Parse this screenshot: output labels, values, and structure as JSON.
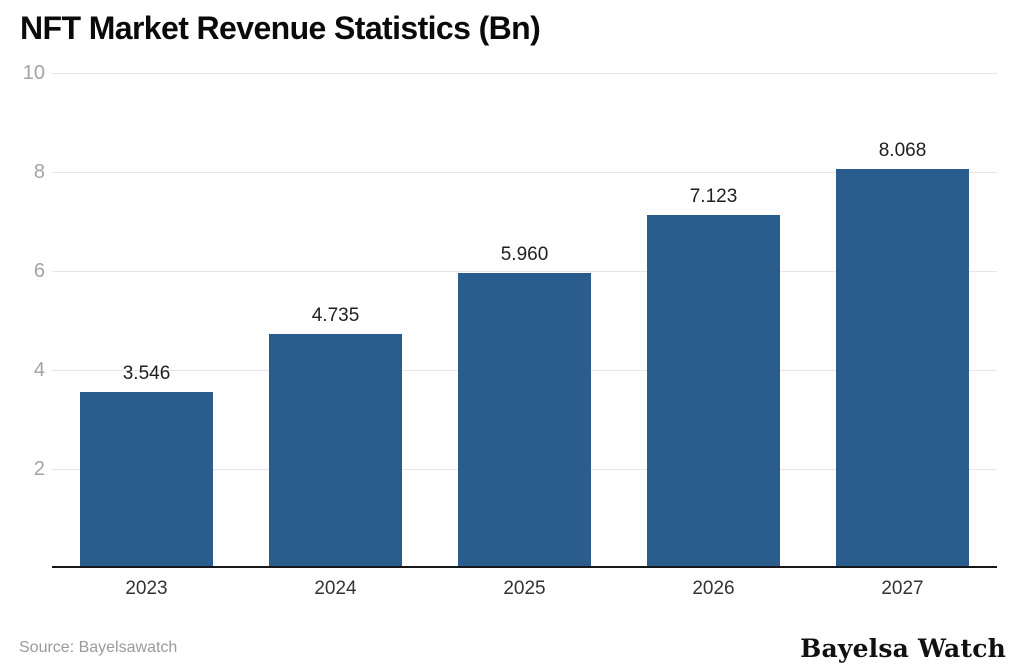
{
  "header": {
    "title": "NFT Market Revenue Statistics (Bn)"
  },
  "footer": {
    "source": "Source: Bayelsawatch",
    "brand": "Bayelsa Watch"
  },
  "colors": {
    "bar": "#2A5D8E",
    "gridline": "#e6e6e6",
    "axis_line": "#16181b",
    "y_tick": "#a3a3a3",
    "x_tick": "#333333",
    "value_label": "#1f1f1f",
    "title": "#0a0a0a",
    "source": "#9a9a9a",
    "background": "#ffffff"
  },
  "chart_data": {
    "type": "bar",
    "title": "NFT Market Revenue Statistics (Bn)",
    "categories": [
      "2023",
      "2024",
      "2025",
      "2026",
      "2027"
    ],
    "values": [
      3.546,
      4.735,
      5.96,
      7.123,
      8.068
    ],
    "data_labels": [
      "3.546",
      "4.735",
      "5.960",
      "7.123",
      "8.068"
    ],
    "xlabel": "",
    "ylabel": "",
    "ylim": [
      0,
      10
    ],
    "yticks": [
      2,
      4,
      6,
      8,
      10
    ],
    "grid": true,
    "legend": "none",
    "bar_color": "#2A5D8E",
    "source": "Source: Bayelsawatch"
  }
}
